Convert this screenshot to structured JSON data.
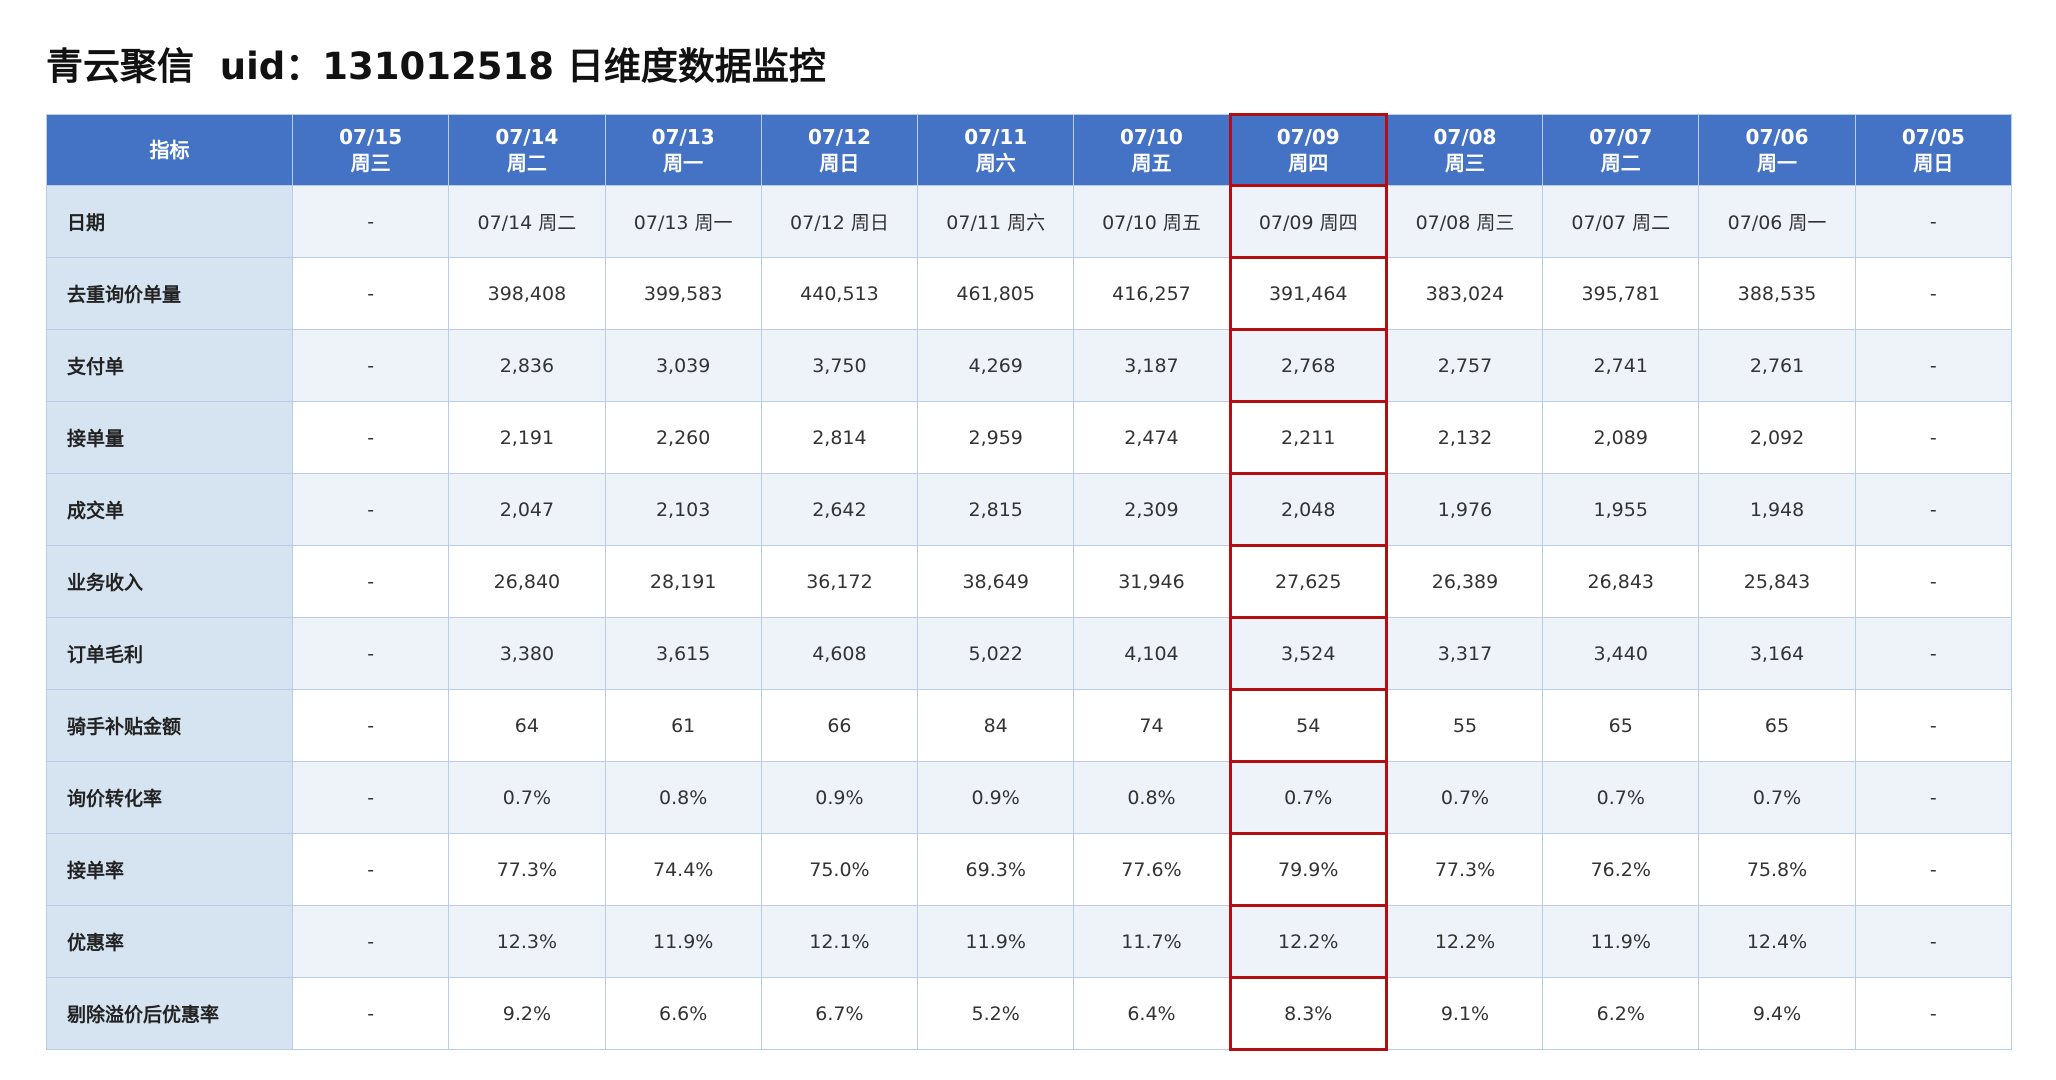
{
  "title": "青云聚信  uid：131012518 日维度数据监控",
  "table": {
    "corner": "指标",
    "columns": [
      {
        "date": "07/15",
        "weekday": "周三"
      },
      {
        "date": "07/14",
        "weekday": "周二"
      },
      {
        "date": "07/13",
        "weekday": "周一"
      },
      {
        "date": "07/12",
        "weekday": "周日"
      },
      {
        "date": "07/11",
        "weekday": "周六"
      },
      {
        "date": "07/10",
        "weekday": "周五"
      },
      {
        "date": "07/09",
        "weekday": "周四"
      },
      {
        "date": "07/08",
        "weekday": "周三"
      },
      {
        "date": "07/07",
        "weekday": "周二"
      },
      {
        "date": "07/06",
        "weekday": "周一"
      },
      {
        "date": "07/05",
        "weekday": "周日"
      }
    ],
    "rows": [
      {
        "label": "日期",
        "cells": [
          "-",
          "07/14 周二",
          "07/13 周一",
          "07/12 周日",
          "07/11 周六",
          "07/10 周五",
          "07/09 周四",
          "07/08 周三",
          "07/07 周二",
          "07/06 周一",
          "-"
        ]
      },
      {
        "label": "去重询价单量",
        "cells": [
          "-",
          "398,408",
          "399,583",
          "440,513",
          "461,805",
          "416,257",
          "391,464",
          "383,024",
          "395,781",
          "388,535",
          "-"
        ]
      },
      {
        "label": "支付单",
        "cells": [
          "-",
          "2,836",
          "3,039",
          "3,750",
          "4,269",
          "3,187",
          "2,768",
          "2,757",
          "2,741",
          "2,761",
          "-"
        ]
      },
      {
        "label": "接单量",
        "cells": [
          "-",
          "2,191",
          "2,260",
          "2,814",
          "2,959",
          "2,474",
          "2,211",
          "2,132",
          "2,089",
          "2,092",
          "-"
        ]
      },
      {
        "label": "成交单",
        "cells": [
          "-",
          "2,047",
          "2,103",
          "2,642",
          "2,815",
          "2,309",
          "2,048",
          "1,976",
          "1,955",
          "1,948",
          "-"
        ]
      },
      {
        "label": "业务收入",
        "cells": [
          "-",
          "26,840",
          "28,191",
          "36,172",
          "38,649",
          "31,946",
          "27,625",
          "26,389",
          "26,843",
          "25,843",
          "-"
        ]
      },
      {
        "label": "订单毛利",
        "cells": [
          "-",
          "3,380",
          "3,615",
          "4,608",
          "5,022",
          "4,104",
          "3,524",
          "3,317",
          "3,440",
          "3,164",
          "-"
        ]
      },
      {
        "label": "骑手补贴金额",
        "cells": [
          "-",
          "64",
          "61",
          "66",
          "84",
          "74",
          "54",
          "55",
          "65",
          "65",
          "-"
        ]
      },
      {
        "label": "询价转化率",
        "cells": [
          "-",
          "0.7%",
          "0.8%",
          "0.9%",
          "0.9%",
          "0.8%",
          "0.7%",
          "0.7%",
          "0.7%",
          "0.7%",
          "-"
        ]
      },
      {
        "label": "接单率",
        "cells": [
          "-",
          "77.3%",
          "74.4%",
          "75.0%",
          "69.3%",
          "77.6%",
          "79.9%",
          "77.3%",
          "76.2%",
          "75.8%",
          "-"
        ]
      },
      {
        "label": "优惠率",
        "cells": [
          "-",
          "12.3%",
          "11.9%",
          "12.1%",
          "11.9%",
          "11.7%",
          "12.2%",
          "12.2%",
          "11.9%",
          "12.4%",
          "-"
        ]
      },
      {
        "label": "剔除溢价后优惠率",
        "cells": [
          "-",
          "9.2%",
          "6.6%",
          "6.7%",
          "5.2%",
          "6.4%",
          "8.3%",
          "9.1%",
          "6.2%",
          "9.4%",
          "-"
        ]
      }
    ]
  }
}
